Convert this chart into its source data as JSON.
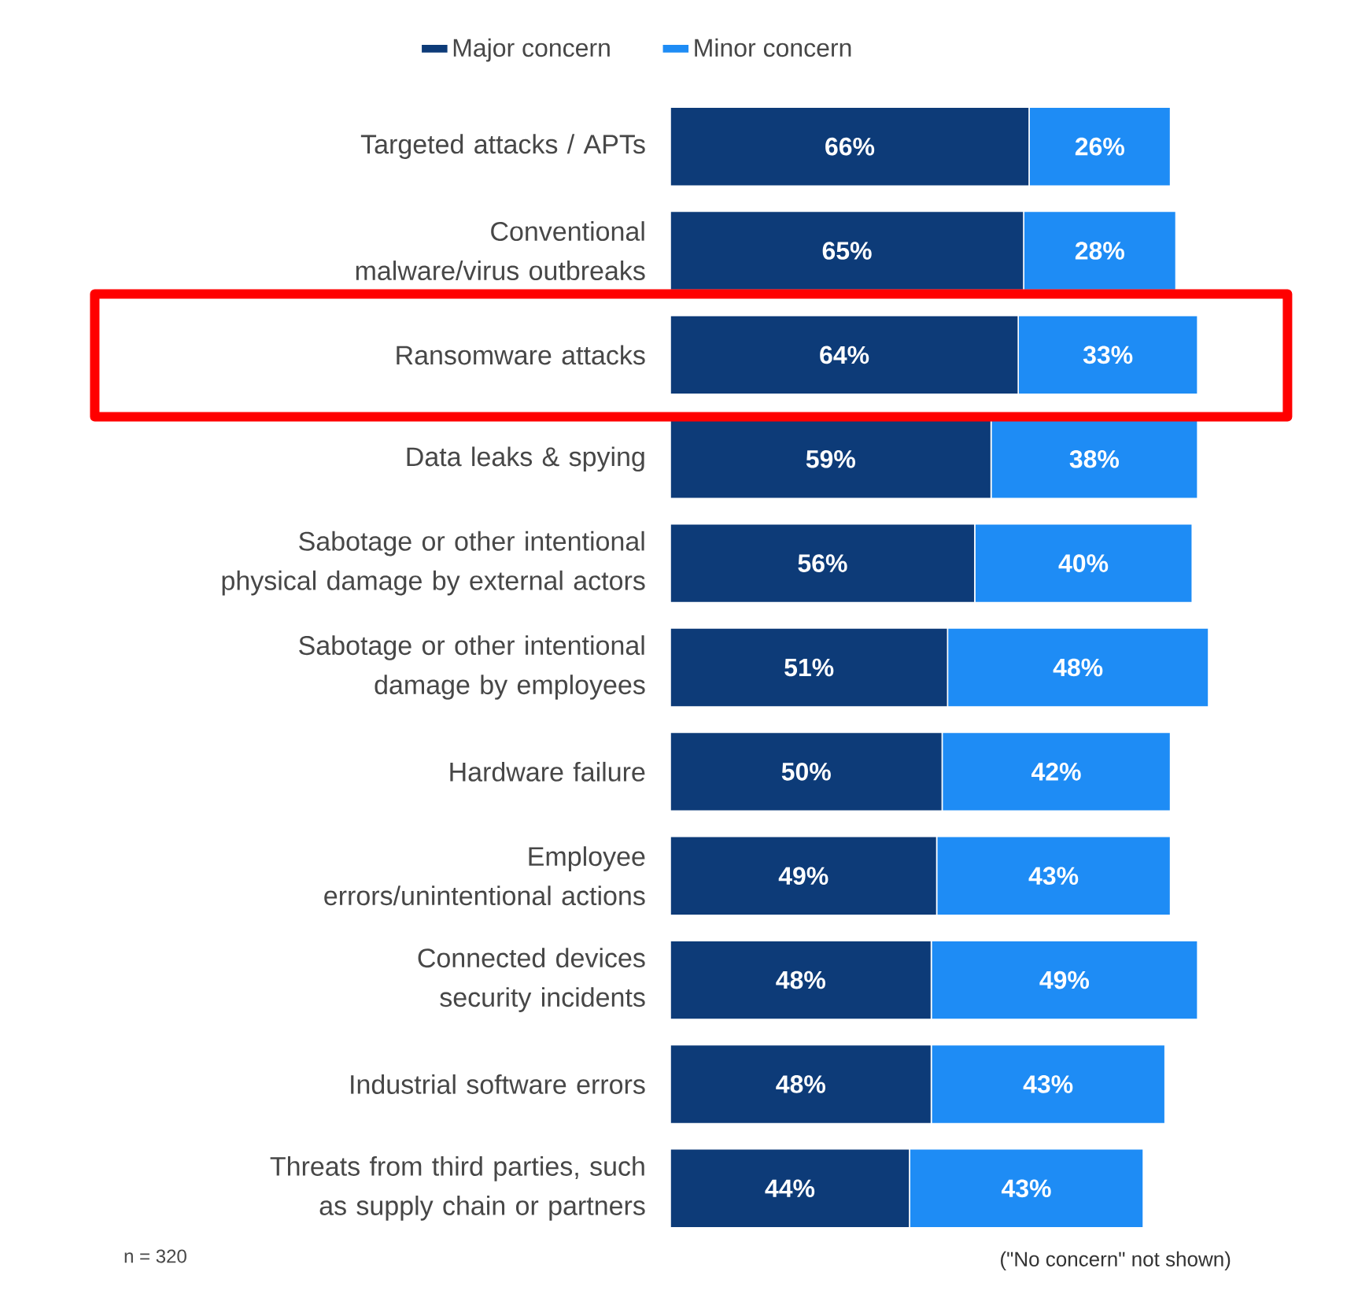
{
  "chart_data": {
    "type": "bar",
    "orientation": "horizontal",
    "stacked": true,
    "legend": "top",
    "categories": [
      "Targeted attacks / APTs",
      "Conventional malware/virus outbreaks",
      "Ransomware attacks",
      "Data leaks & spying",
      "Sabotage or other intentional physical damage by external actors",
      "Sabotage or other intentional damage by employees",
      "Hardware failure",
      "Employee errors/unintentional actions",
      "Connected devices security incidents",
      "Industrial software errors",
      "Threats from third parties, such as supply chain or partners"
    ],
    "series": [
      {
        "name": "Major concern",
        "color": "#0d3b78",
        "values": [
          66,
          65,
          64,
          59,
          56,
          51,
          50,
          49,
          48,
          48,
          44
        ],
        "value_labels": [
          "66%",
          "65%",
          "64%",
          "59%",
          "56%",
          "51%",
          "50%",
          "49%",
          "48%",
          "48%",
          "44%"
        ]
      },
      {
        "name": "Minor concern",
        "color": "#1e8cf5",
        "values": [
          26,
          28,
          33,
          38,
          40,
          48,
          42,
          43,
          49,
          43,
          43
        ],
        "value_labels": [
          "26%",
          "28%",
          "33%",
          "38%",
          "40%",
          "48%",
          "42%",
          "43%",
          "49%",
          "43%",
          "43%"
        ]
      }
    ],
    "annotations": [
      "n = 320",
      "(\"No concern\" not shown)"
    ]
  }
}
